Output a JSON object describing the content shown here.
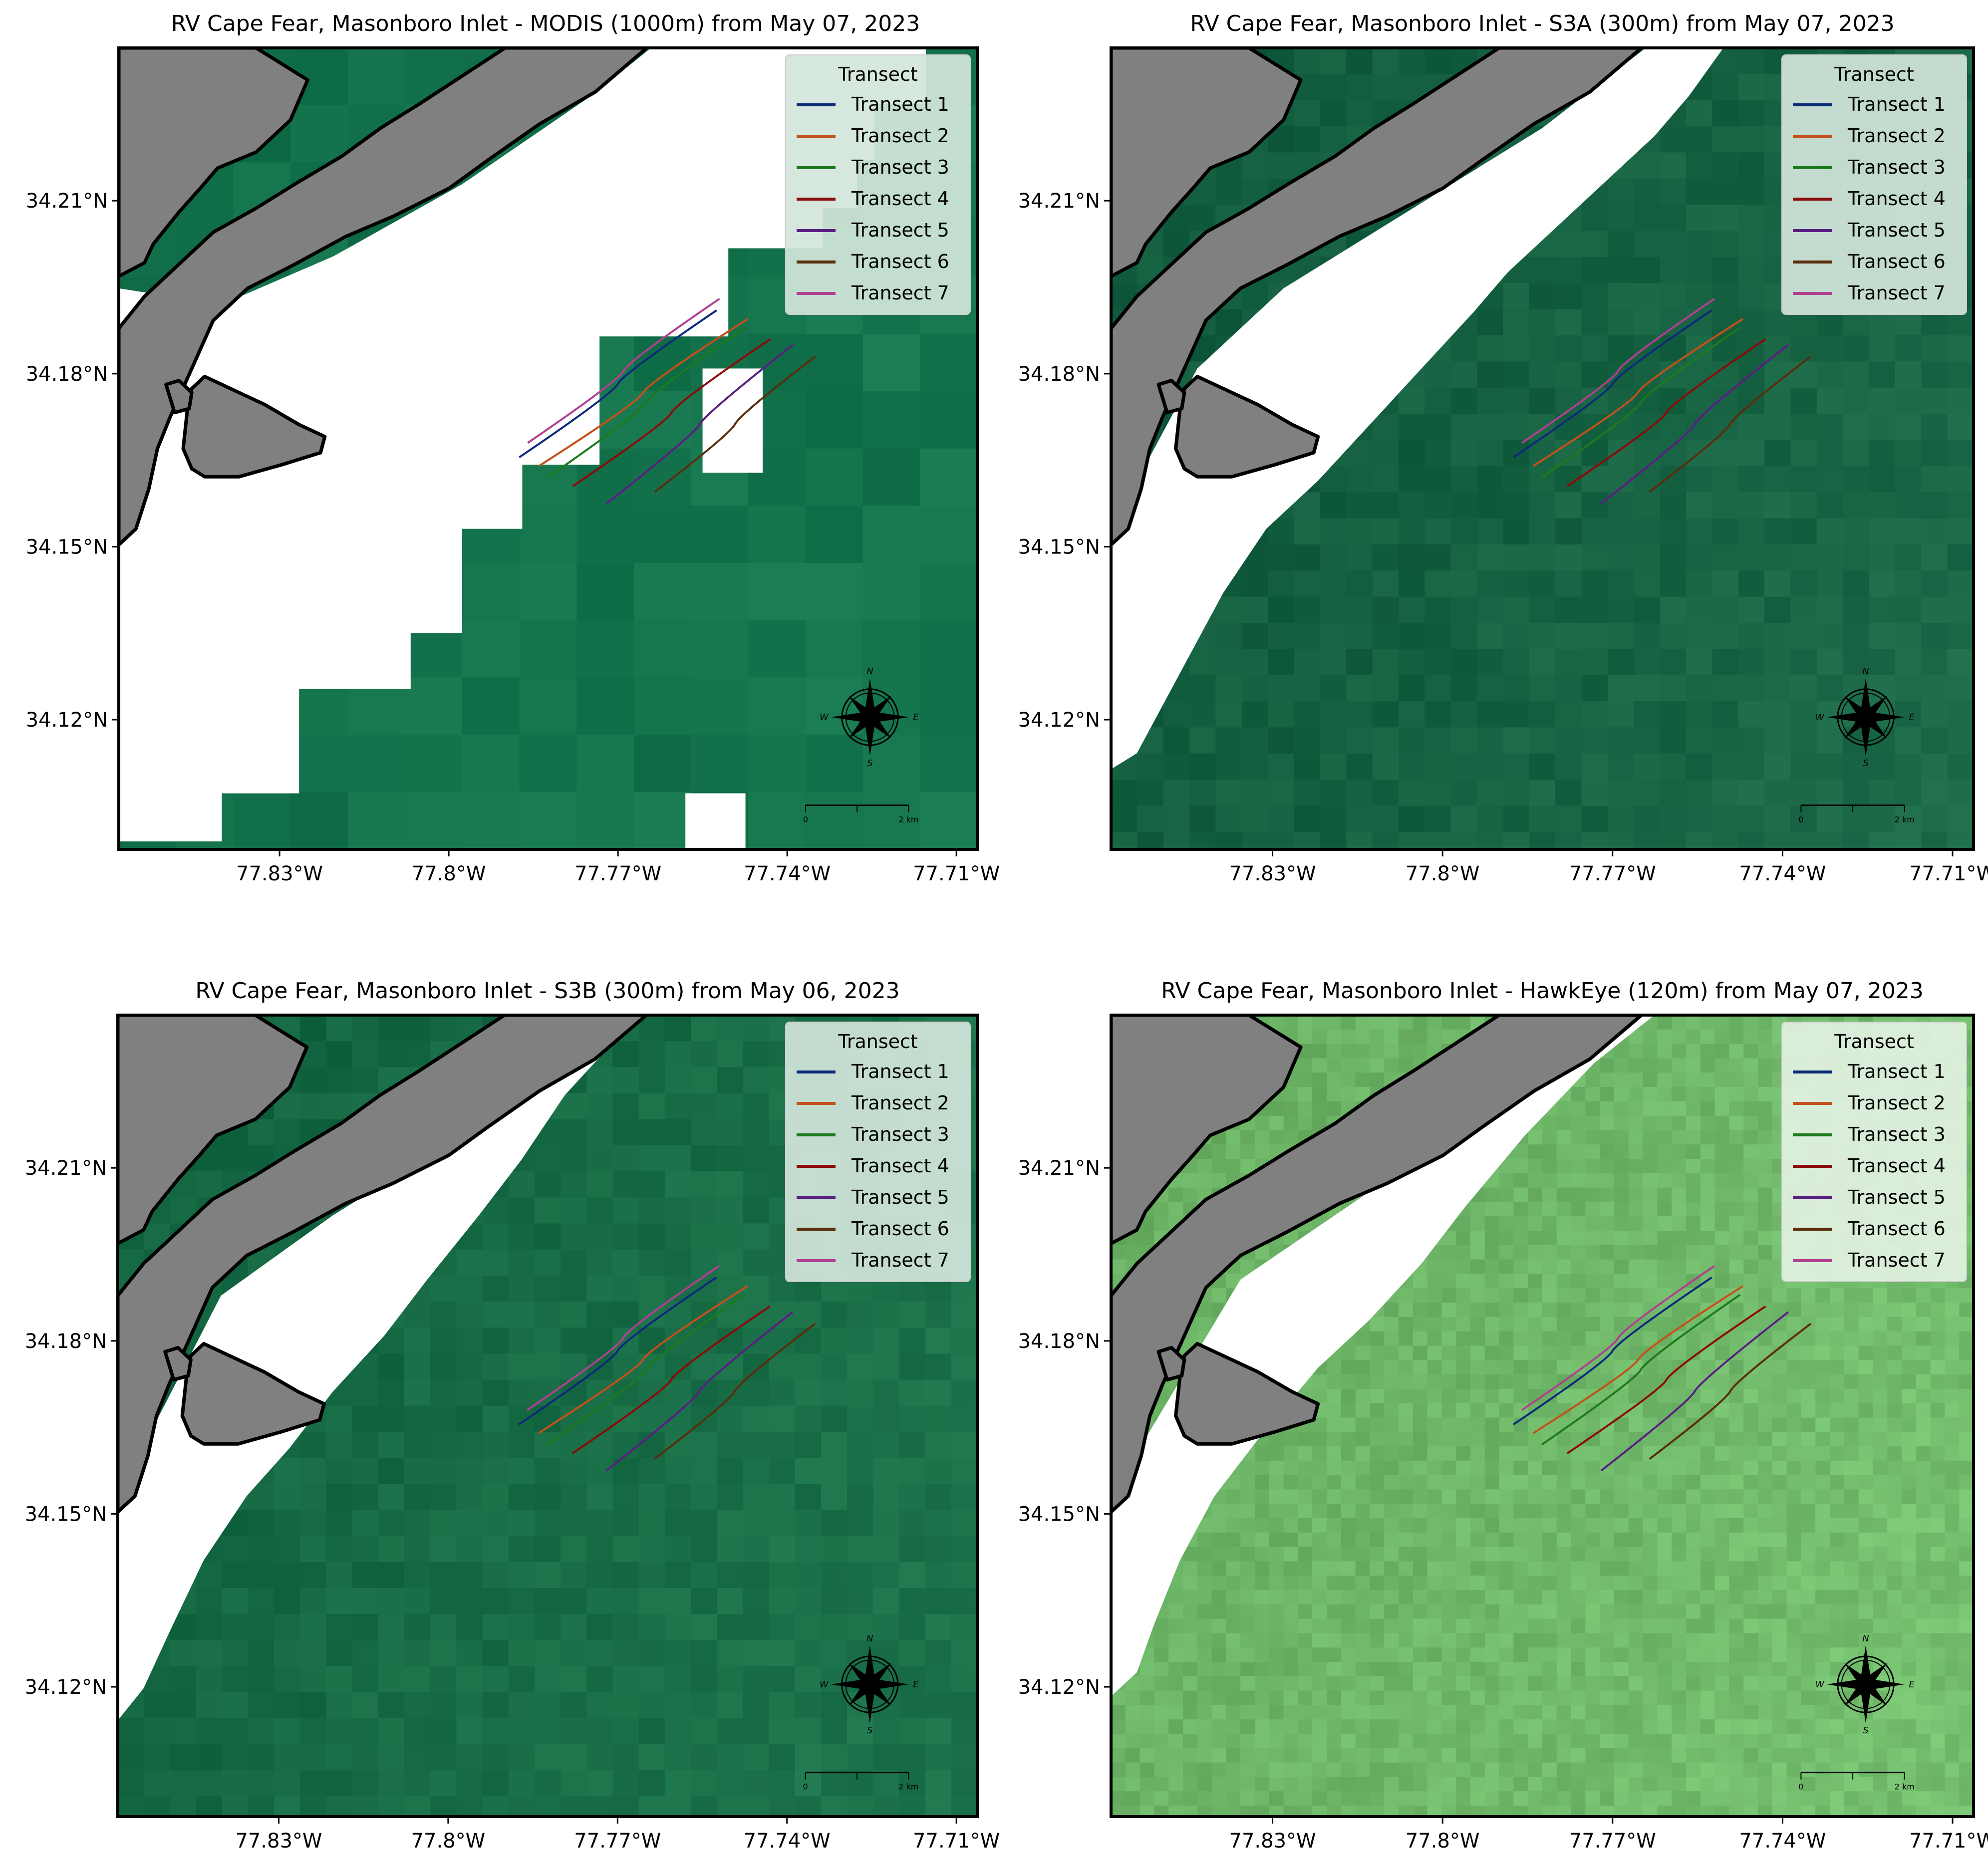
{
  "figure": {
    "panels": [
      {
        "title": "RV Cape Fear, Masonboro Inlet - MODIS (1000m) from May 07, 2023",
        "sensor": "MODIS",
        "water_color": "#12714a",
        "legend_bg": "#d3e6db"
      },
      {
        "title": "RV Cape Fear, Masonboro Inlet - S3A (300m) from May 07, 2023",
        "sensor": "S3A",
        "water_color": "#135e3f",
        "legend_bg": "#d3e6db"
      },
      {
        "title": "RV Cape Fear, Masonboro Inlet - S3B (300m) from May 06, 2023",
        "sensor": "S3B",
        "water_color": "#146842",
        "legend_bg": "#d3e6db"
      },
      {
        "title": "RV Cape Fear, Masonboro Inlet - HawkEye (120m) from May 07, 2023",
        "sensor": "HawkEye",
        "water_color": "#6cb466",
        "legend_bg": "#e3f1e2"
      }
    ],
    "map": {
      "land_color": "#808080",
      "coastline_color": "#000000",
      "masked_color": "#ffffff"
    },
    "axes": {
      "x_ticks": [
        "77.83°W",
        "77.8°W",
        "77.77°W",
        "77.74°W",
        "77.71°W"
      ],
      "y_ticks": [
        "34.21°N",
        "34.18°N",
        "34.15°N",
        "34.12°N"
      ]
    },
    "legend": {
      "title": "Transect",
      "items": [
        {
          "label": "Transect 1",
          "color": "#0c2a7a"
        },
        {
          "label": "Transect 2",
          "color": "#c4501a"
        },
        {
          "label": "Transect 3",
          "color": "#1c7a1c"
        },
        {
          "label": "Transect 4",
          "color": "#8b0a0a"
        },
        {
          "label": "Transect 5",
          "color": "#5a1e82"
        },
        {
          "label": "Transect 6",
          "color": "#5a2d0c"
        },
        {
          "label": "Transect 7",
          "color": "#b0408e"
        }
      ]
    },
    "compass": {
      "north": "N",
      "south": "S",
      "east": "E",
      "west": "W"
    },
    "scalebar": {
      "start_label": "0",
      "end_label": "2 km"
    }
  }
}
